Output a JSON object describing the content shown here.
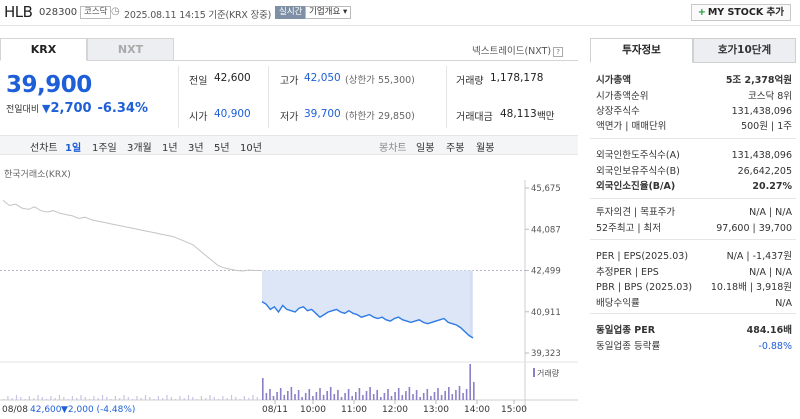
{
  "header": {
    "name": "HLB",
    "code": "028300",
    "market_badge": "코스닥",
    "datetime": "2025.08.11 14:15 기준(KRX 장중)",
    "realtime_badge": "실시간",
    "company_badge": "기업개요",
    "mystock_label": "MY STOCK 추가"
  },
  "tabs": {
    "krx": "KRX",
    "nxt": "NXT"
  },
  "nextrade_link": "넥스트레이드(NXT)",
  "price": {
    "current": "39,900",
    "change_label": "전일대비",
    "change": "2,700",
    "change_pct": "-6.34%"
  },
  "stats": {
    "prev_label": "전일",
    "prev": "42,600",
    "high_label": "고가",
    "high": "42,050",
    "upper_limit": "(상한가 55,300)",
    "volume_label": "거래량",
    "volume": "1,178,178",
    "open_label": "시가",
    "open": "40,900",
    "low_label": "저가",
    "low": "39,700",
    "lower_limit": "(하한가 29,850)",
    "amount_label": "거래대금",
    "amount": "48,113",
    "amount_unit": "백만"
  },
  "period_bar": {
    "line_chart": "선차트",
    "periods": [
      "1일",
      "1주일",
      "3개월",
      "1년",
      "3년",
      "5년",
      "10년"
    ],
    "selected": "1일",
    "candle_chart": "봉차트",
    "candles": [
      "일봉",
      "주봉",
      "월봉"
    ]
  },
  "chart_data": {
    "type": "line",
    "title": "한국거래소(KRX)",
    "y_ticks": [
      "45,675",
      "44,087",
      "42,499",
      "40,911",
      "39,323"
    ],
    "ylim": [
      39323,
      45675
    ],
    "reference_price": 42499,
    "x_ticks": [
      "08/08",
      "08/11",
      "10:00",
      "11:00",
      "12:00",
      "13:00",
      "14:00",
      "15:00"
    ],
    "volume_label": "거래량",
    "footer_prev_date": "08/08",
    "footer_prev_price": "42,600",
    "footer_prev_change": "▼2,000 (-4.48%)",
    "series": [
      {
        "values": [
          45200,
          45000,
          45050,
          44900,
          44850,
          44950,
          44800,
          44750,
          44800,
          44700,
          44650,
          44600,
          44500,
          44550,
          44450,
          44400,
          44350,
          44300,
          44250,
          44200,
          44150,
          44100,
          44050,
          44000,
          43950,
          43900,
          43850,
          43800,
          43700,
          43600,
          43500,
          43300,
          43100,
          42900,
          42700,
          42600,
          42550,
          42500,
          42480,
          42520,
          42500,
          42499,
          41300,
          41200,
          41000,
          41100,
          40900,
          41150,
          41000,
          40950,
          40900,
          41050,
          41100,
          40950,
          41000,
          40850,
          40700,
          40800,
          40900,
          40950,
          41000,
          40900,
          40850,
          40950,
          40850,
          40800,
          40700,
          40750,
          40800,
          40700,
          40650,
          40700,
          40600,
          40550,
          40650,
          40700,
          40600,
          40550,
          40500,
          40550,
          40600,
          40500,
          40450,
          40500,
          40550,
          40600,
          40650,
          40500,
          40450,
          40400,
          40300,
          40150,
          40000,
          39900
        ]
      }
    ]
  },
  "right_panel": {
    "tabs": [
      "투자정보",
      "호가10단계"
    ],
    "rows": [
      {
        "k": "시가총액",
        "v": "5조 2,378억원",
        "bold": true
      },
      {
        "k": "시가총액순위",
        "v": "코스닥 8위"
      },
      {
        "k": "상장주식수",
        "v": "131,438,096"
      },
      {
        "k": "액면가 | 매매단위",
        "v": "500원 | 1주"
      },
      {
        "k": "외국인한도주식수(A)",
        "v": "131,438,096"
      },
      {
        "k": "외국인보유주식수(B)",
        "v": "26,642,205"
      },
      {
        "k": "외국인소진율(B/A)",
        "v": "20.27%",
        "bold": true
      },
      {
        "k": "투자의견 | 목표주가",
        "v": "N/A | N/A"
      },
      {
        "k": "52주최고 | 최저",
        "v": "97,600 | 39,700"
      },
      {
        "k": "PER | EPS(2025.03)",
        "v": "N/A | -1,437원"
      },
      {
        "k": "추정PER | EPS",
        "v": "N/A | N/A"
      },
      {
        "k": "PBR | BPS (2025.03)",
        "v": "10.18배 | 3,918원"
      },
      {
        "k": "배당수익률",
        "v": "N/A"
      },
      {
        "k": "동일업종 PER",
        "v": "484.16배",
        "bold": true
      },
      {
        "k": "동일업종 등락률",
        "v": "-0.88%",
        "blue": true
      }
    ]
  }
}
